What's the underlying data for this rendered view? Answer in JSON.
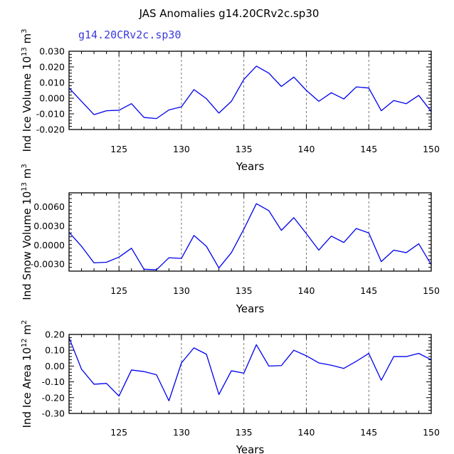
{
  "figure": {
    "title": "JAS Anomalies g14.20CRv2c.sp30",
    "run_label": "g14.20CRv2c.sp30",
    "line_color": "#0000ee",
    "run_label_color": "#3b3bdc"
  },
  "chart_data": [
    {
      "type": "line",
      "id": "ice-volume",
      "title": "",
      "xlabel": "Years",
      "ylabel_main": "Ind Ice Volume 10",
      "ylabel_exp": "13",
      "ylabel_unit": " m",
      "ylabel_unit_exp": "3",
      "xlim": [
        121,
        150
      ],
      "ylim": [
        -0.02,
        0.03
      ],
      "xticks": [
        125,
        130,
        135,
        140,
        145,
        150
      ],
      "xtick_labels": [
        "125",
        "130",
        "135",
        "140",
        "145",
        "150"
      ],
      "yticks": [
        -0.02,
        -0.01,
        0.0,
        0.01,
        0.02,
        0.03
      ],
      "ytick_labels": [
        "-0.020",
        "-0.010",
        "0.000",
        "0.010",
        "0.020",
        "0.030"
      ],
      "gridlines_x": [
        125,
        130,
        135,
        140,
        145
      ],
      "series": [
        {
          "name": "g14.20CRv2c.sp30",
          "x": [
            121,
            122,
            123,
            124,
            125,
            126,
            127,
            128,
            129,
            130,
            131,
            132,
            133,
            134,
            135,
            136,
            137,
            138,
            139,
            140,
            141,
            142,
            143,
            144,
            145,
            146,
            147,
            148,
            149,
            150
          ],
          "y": [
            0.0065,
            -0.002,
            -0.0105,
            -0.008,
            -0.0077,
            -0.0035,
            -0.0123,
            -0.013,
            -0.0075,
            -0.0055,
            0.0055,
            -0.0003,
            -0.0095,
            -0.002,
            0.012,
            0.0205,
            0.016,
            0.0075,
            0.0135,
            0.005,
            -0.002,
            0.0035,
            -0.0005,
            0.0072,
            0.0065,
            -0.008,
            -0.0015,
            -0.0035,
            0.0018,
            -0.0085
          ]
        }
      ]
    },
    {
      "type": "line",
      "id": "snow-volume",
      "title": "",
      "xlabel": "Years",
      "ylabel_main": "Ind Snow Volume 10",
      "ylabel_exp": "13",
      "ylabel_unit": " m",
      "ylabel_unit_exp": "3",
      "xlim": [
        121,
        150
      ],
      "ylim": [
        -0.0041,
        0.0082
      ],
      "xticks": [
        125,
        130,
        135,
        140,
        145,
        150
      ],
      "xtick_labels": [
        "125",
        "130",
        "135",
        "140",
        "145",
        "150"
      ],
      "yticks": [
        -0.003,
        0.0,
        0.003,
        0.006
      ],
      "ytick_labels": [
        "-0.0030",
        "0.0000",
        "0.0030",
        "0.0060"
      ],
      "gridlines_x": [
        125,
        130,
        135,
        140,
        145
      ],
      "series": [
        {
          "name": "g14.20CRv2c.sp30",
          "x": [
            121,
            122,
            123,
            124,
            125,
            126,
            127,
            128,
            129,
            130,
            131,
            132,
            133,
            134,
            135,
            136,
            137,
            138,
            139,
            140,
            141,
            142,
            143,
            144,
            145,
            146,
            147,
            148,
            149,
            150
          ],
          "y": [
            0.002,
            -0.0002,
            -0.0028,
            -0.0027,
            -0.0019,
            -0.0005,
            -0.0038,
            -0.0039,
            -0.002,
            -0.0021,
            0.0015,
            -0.0002,
            -0.0036,
            -0.0012,
            0.0025,
            0.0065,
            0.0054,
            0.0023,
            0.0043,
            0.0018,
            -0.0008,
            0.0014,
            0.0004,
            0.0026,
            0.0019,
            -0.0026,
            -0.0008,
            -0.0012,
            0.0002,
            -0.0031
          ]
        }
      ]
    },
    {
      "type": "line",
      "id": "ice-area",
      "title": "",
      "xlabel": "Years",
      "ylabel_main": "Ind Ice Area 10",
      "ylabel_exp": "12",
      "ylabel_unit": " m",
      "ylabel_unit_exp": "2",
      "xlim": [
        121,
        150
      ],
      "ylim": [
        -0.3,
        0.2
      ],
      "xticks": [
        125,
        130,
        135,
        140,
        145,
        150
      ],
      "xtick_labels": [
        "125",
        "130",
        "135",
        "140",
        "145",
        "150"
      ],
      "yticks": [
        -0.3,
        -0.2,
        -0.1,
        0.0,
        0.1,
        0.2
      ],
      "ytick_labels": [
        "-0.30",
        "-0.20",
        "-0.10",
        "0.00",
        "0.10",
        "0.20"
      ],
      "gridlines_x": [
        125,
        130,
        135,
        140,
        145
      ],
      "series": [
        {
          "name": "g14.20CRv2c.sp30",
          "x": [
            121,
            122,
            123,
            124,
            125,
            126,
            127,
            128,
            129,
            130,
            131,
            132,
            133,
            134,
            135,
            136,
            137,
            138,
            139,
            140,
            141,
            142,
            143,
            144,
            145,
            146,
            147,
            148,
            149,
            150
          ],
          "y": [
            0.18,
            -0.02,
            -0.115,
            -0.11,
            -0.19,
            -0.025,
            -0.035,
            -0.055,
            -0.22,
            0.02,
            0.115,
            0.075,
            -0.18,
            -0.03,
            -0.045,
            0.135,
            0.0,
            0.003,
            0.1,
            0.065,
            0.02,
            0.005,
            -0.015,
            0.03,
            0.08,
            -0.09,
            0.06,
            0.06,
            0.08,
            0.04
          ]
        }
      ]
    }
  ]
}
